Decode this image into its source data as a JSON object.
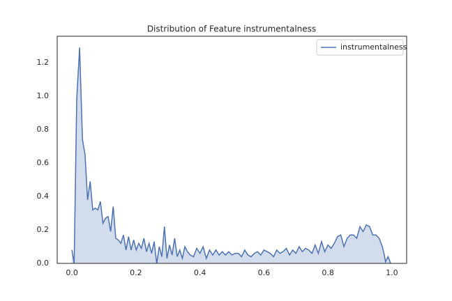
{
  "chart_data": {
    "type": "area-line",
    "title": "Distribution of Feature instrumentalness",
    "x": [
      0.0,
      0.007,
      0.015,
      0.024,
      0.033,
      0.041,
      0.049,
      0.057,
      0.065,
      0.073,
      0.081,
      0.089,
      0.097,
      0.105,
      0.113,
      0.121,
      0.129,
      0.137,
      0.145,
      0.153,
      0.161,
      0.169,
      0.177,
      0.185,
      0.193,
      0.201,
      0.209,
      0.217,
      0.225,
      0.233,
      0.241,
      0.249,
      0.257,
      0.265,
      0.273,
      0.281,
      0.289,
      0.297,
      0.305,
      0.313,
      0.321,
      0.329,
      0.337,
      0.345,
      0.353,
      0.361,
      0.37,
      0.38,
      0.39,
      0.4,
      0.41,
      0.42,
      0.43,
      0.44,
      0.45,
      0.46,
      0.47,
      0.48,
      0.49,
      0.5,
      0.51,
      0.52,
      0.53,
      0.54,
      0.55,
      0.56,
      0.57,
      0.58,
      0.59,
      0.6,
      0.61,
      0.62,
      0.63,
      0.64,
      0.65,
      0.66,
      0.67,
      0.68,
      0.69,
      0.7,
      0.71,
      0.72,
      0.73,
      0.74,
      0.75,
      0.76,
      0.77,
      0.78,
      0.79,
      0.8,
      0.81,
      0.82,
      0.83,
      0.84,
      0.85,
      0.86,
      0.87,
      0.88,
      0.89,
      0.9,
      0.91,
      0.92,
      0.93,
      0.94,
      0.95,
      0.96,
      0.97,
      0.975,
      0.98,
      0.988,
      0.996
    ],
    "series": [
      {
        "name": "instrumentalness",
        "color": "#4c72b0",
        "fill": "#d3dcec",
        "values": [
          0.08,
          0.0,
          0.98,
          1.29,
          0.74,
          0.65,
          0.38,
          0.49,
          0.32,
          0.33,
          0.32,
          0.37,
          0.24,
          0.27,
          0.28,
          0.19,
          0.34,
          0.15,
          0.14,
          0.12,
          0.17,
          0.08,
          0.16,
          0.08,
          0.14,
          0.08,
          0.12,
          0.09,
          0.15,
          0.07,
          0.12,
          0.06,
          0.13,
          0.0,
          0.1,
          0.04,
          0.22,
          0.03,
          0.11,
          0.05,
          0.15,
          0.04,
          0.08,
          0.03,
          0.1,
          0.07,
          0.05,
          0.04,
          0.09,
          0.06,
          0.1,
          0.03,
          0.08,
          0.05,
          0.08,
          0.05,
          0.07,
          0.05,
          0.07,
          0.05,
          0.06,
          0.06,
          0.04,
          0.08,
          0.05,
          0.04,
          0.06,
          0.07,
          0.05,
          0.08,
          0.07,
          0.06,
          0.04,
          0.08,
          0.06,
          0.07,
          0.09,
          0.05,
          0.08,
          0.06,
          0.1,
          0.07,
          0.09,
          0.08,
          0.06,
          0.11,
          0.06,
          0.13,
          0.07,
          0.11,
          0.09,
          0.12,
          0.16,
          0.17,
          0.1,
          0.15,
          0.17,
          0.17,
          0.15,
          0.22,
          0.19,
          0.23,
          0.22,
          0.17,
          0.17,
          0.15,
          0.1,
          0.06,
          0.01,
          0.04,
          0.0
        ]
      }
    ],
    "xlim": [
      -0.046,
      1.046
    ],
    "ylim": [
      0,
      1.358
    ],
    "xticks": [
      {
        "value": 0,
        "label": "0.0"
      },
      0.2,
      0.4,
      0.6,
      0.8,
      {
        "value": 1,
        "label": "1.0"
      }
    ],
    "yticks": [
      {
        "value": 0,
        "label": "0.0"
      },
      0.2,
      0.4,
      0.6,
      0.8,
      {
        "value": 1,
        "label": "1.0"
      },
      1.2
    ],
    "grid": false,
    "legend": "upper right"
  }
}
